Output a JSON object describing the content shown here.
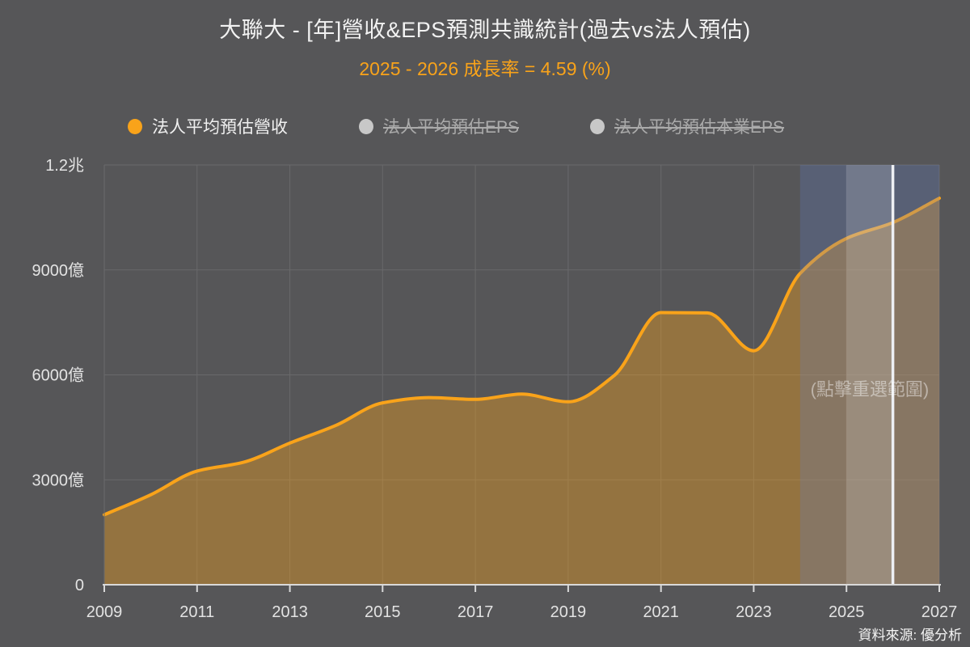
{
  "header": {
    "title": "大聯大 - [年]營收&EPS預測共識統計(過去vs法人預估)",
    "subtitle": "2025 - 2026 成長率 = 4.59 (%)"
  },
  "legend": {
    "items": [
      {
        "label": "法人平均預估營收",
        "color": "#f9a31a",
        "active": true
      },
      {
        "label": "法人平均預估EPS",
        "color": "#c8c8c8",
        "active": false
      },
      {
        "label": "法人平均預估本業EPS",
        "color": "#c8c8c8",
        "active": false
      }
    ]
  },
  "chart_data": {
    "type": "area",
    "title": "大聯大 - [年]營收&EPS預測共識統計(過去vs法人預估)",
    "subtitle": "2025 - 2026 成長率 = 4.59 (%)",
    "x": [
      2009,
      2010,
      2011,
      2012,
      2013,
      2014,
      2015,
      2016,
      2017,
      2018,
      2019,
      2020,
      2021,
      2022,
      2023,
      2024,
      2025,
      2026,
      2027
    ],
    "series": [
      {
        "name": "法人平均預估營收",
        "unit": "億",
        "color": "#f9a31a",
        "values": [
          2000,
          2570,
          3250,
          3500,
          4050,
          4560,
          5200,
          5350,
          5300,
          5450,
          5230,
          5990,
          7780,
          7770,
          6690,
          8900,
          9900,
          10354,
          11050
        ]
      }
    ],
    "ylim": [
      0,
      12000
    ],
    "xlim": [
      2009,
      2027
    ],
    "grid": true,
    "legend_position": "top",
    "y_ticks": [
      {
        "label": "0",
        "value": 0
      },
      {
        "label": "3000億",
        "value": 3000
      },
      {
        "label": "6000億",
        "value": 6000
      },
      {
        "label": "9000億",
        "value": 9000
      },
      {
        "label": "1.2兆",
        "value": 12000
      }
    ],
    "x_ticks": [
      2009,
      2011,
      2013,
      2015,
      2017,
      2019,
      2021,
      2023,
      2025,
      2027
    ],
    "growth_annotation": {
      "range": "2025 - 2026",
      "growth_pct": 4.59
    },
    "selection": {
      "forecast_range": [
        2024,
        2027
      ],
      "selected_range": [
        2025,
        2026
      ],
      "marker_year": 2026,
      "hint_label": "(點擊重選範圍)"
    }
  },
  "source": {
    "label": "資料來源: 優分析"
  },
  "colors": {
    "background": "#565658",
    "grid": "#69696b",
    "axis_line": "#d9d9d9",
    "axis_text": "#e3e3e3",
    "accent_orange": "#f9a31a",
    "area_fill": "rgba(249,163,26,0.38)",
    "forecast_overlay": "rgba(97,129,203,0.25)",
    "selected_overlay": "rgba(255,255,255,0.16)",
    "marker_line": "#eef0f4",
    "hint_text": "rgba(255,255,255,0.45)",
    "inactive_text": "#ababab",
    "title_text": "#f2f2f2"
  }
}
